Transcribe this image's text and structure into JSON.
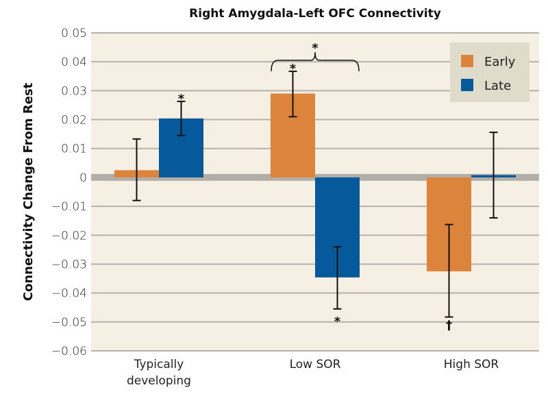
{
  "chart_data": {
    "type": "bar",
    "title": "Right Amygdala-Left OFC Connectivity",
    "xlabel": "",
    "ylabel": "Connectivity Change From Rest",
    "ylim": [
      -0.06,
      0.05
    ],
    "yticks": [
      0.05,
      0.04,
      0.03,
      0.02,
      0.01,
      0,
      -0.01,
      -0.02,
      -0.03,
      -0.04,
      -0.05,
      -0.06
    ],
    "ytick_labels": [
      "0.05",
      "0.04",
      "0.03",
      "0.02",
      "0.01",
      "0",
      "−0.01",
      "−0.02",
      "−0.03",
      "−0.04",
      "−0.05",
      "−0.06"
    ],
    "grid": true,
    "legend_position": "top-right",
    "categories": [
      {
        "label_lines": [
          "Typically",
          "developing"
        ]
      },
      {
        "label_lines": [
          "Low SOR"
        ]
      },
      {
        "label_lines": [
          "High SOR"
        ]
      }
    ],
    "series": [
      {
        "name": "Early",
        "color": "#dd843c",
        "values": [
          0.0025,
          0.029,
          -0.0325
        ],
        "error_low": [
          -0.008,
          0.021,
          -0.0483
        ],
        "error_high": [
          0.0133,
          0.0367,
          -0.0163
        ],
        "annotations": [
          "",
          "*",
          "†"
        ]
      },
      {
        "name": "Late",
        "color": "#065a9b",
        "values": [
          0.0204,
          -0.0346,
          0.0008
        ],
        "error_low": [
          0.0145,
          -0.0455,
          -0.014
        ],
        "error_high": [
          0.0263,
          -0.024,
          0.0156
        ],
        "annotations": [
          "*",
          "*",
          ""
        ]
      }
    ],
    "bracket_annotation": {
      "group": 1,
      "label": "*"
    }
  },
  "colors": {
    "plot_background": "#f5efe4",
    "gridline": "#b6b2ab",
    "zero_line": "#b2aea8",
    "legend_background": "#e0dccb"
  }
}
